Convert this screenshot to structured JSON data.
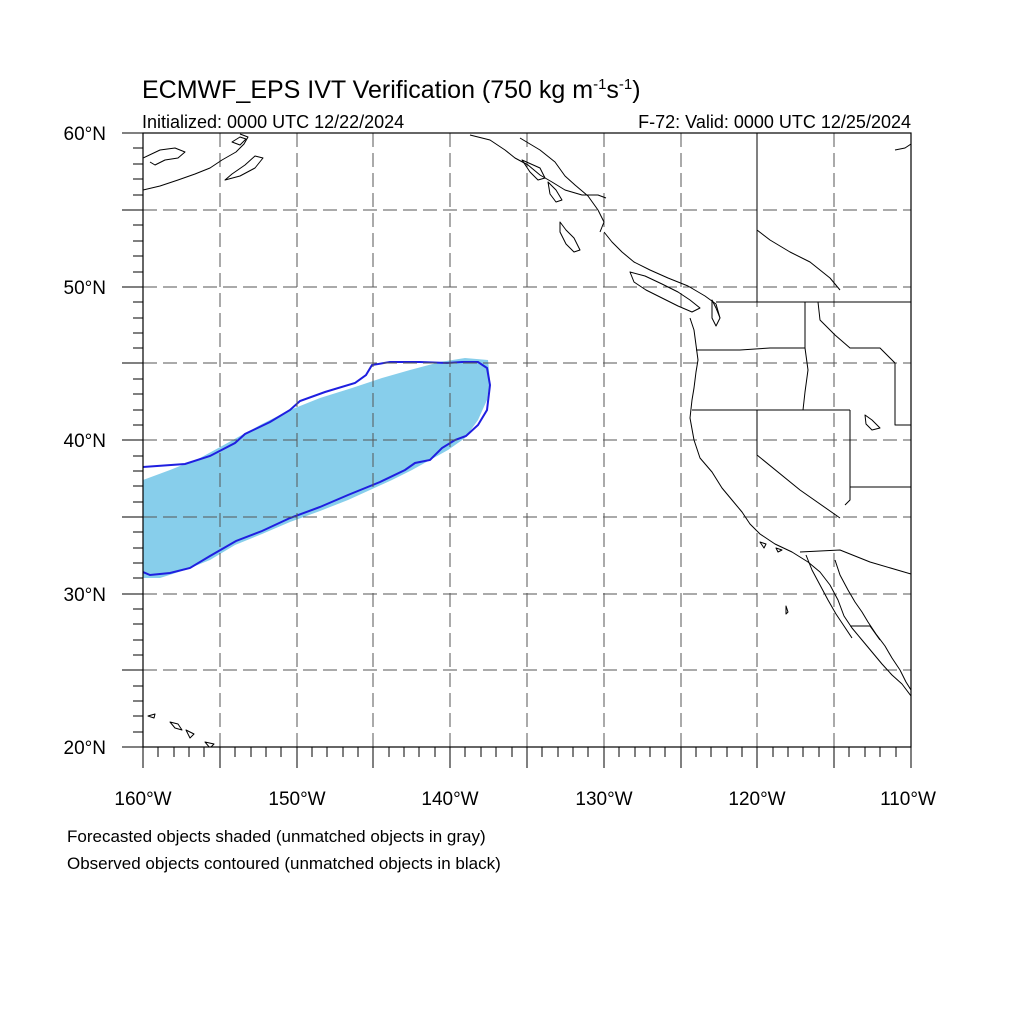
{
  "title": {
    "main": "ECMWF_EPS IVT Verification (750 kg m",
    "sup1": "-1",
    "mid": "s",
    "sup2": "-1",
    "end": ")"
  },
  "initialized": "Initialized: 0000 UTC 12/22/2024",
  "valid": "F-72: Valid: 0000 UTC 12/25/2024",
  "latitude_labels": [
    "60°N",
    "50°N",
    "40°N",
    "30°N",
    "20°N"
  ],
  "longitude_labels": [
    "160°W",
    "150°W",
    "140°W",
    "130°W",
    "120°W",
    "110°W"
  ],
  "notes": [
    "Forecasted objects shaded (unmatched objects in gray)",
    "Observed objects contoured (unmatched objects in black)"
  ],
  "map": {
    "lon_range": [
      -160,
      -110
    ],
    "lat_range": [
      20,
      60
    ],
    "grid_interval_deg": 5,
    "forecast_fill_color": "#87ceeb",
    "observed_contour_color": "#1f1fe0",
    "coast_color": "#000000",
    "grid_style": "dashed"
  }
}
